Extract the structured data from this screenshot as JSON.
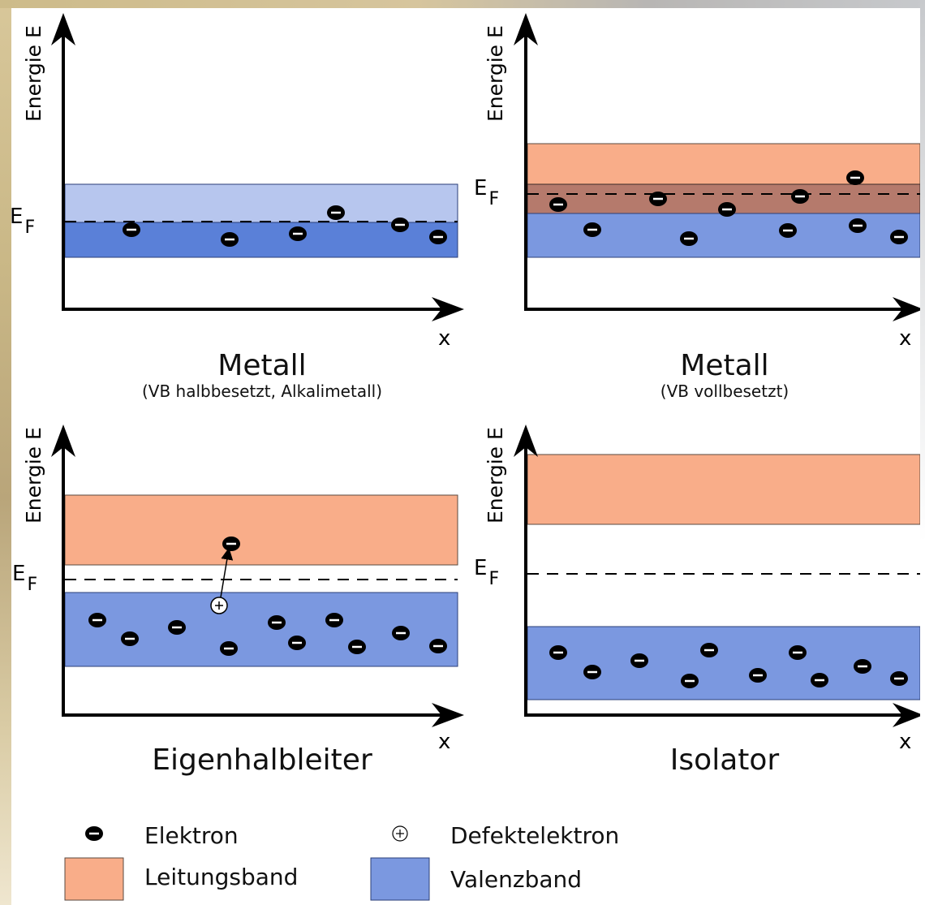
{
  "panels": [
    {
      "axis_y_label": "Energie E",
      "axis_x_label": "x",
      "fermi_label_main": "E",
      "fermi_label_sub": "F",
      "title": "Metall",
      "subtitle": "(VB halbbesetzt, Alkalimetall)"
    },
    {
      "axis_y_label": "Energie E",
      "axis_x_label": "x",
      "fermi_label_main": "E",
      "fermi_label_sub": "F",
      "title": "Metall",
      "subtitle": "(VB vollbesetzt)"
    },
    {
      "axis_y_label": "Energie E",
      "axis_x_label": "x",
      "fermi_label_main": "E",
      "fermi_label_sub": "F",
      "title": "Eigenhalbleiter",
      "subtitle": ""
    },
    {
      "axis_y_label": "Energie E",
      "axis_x_label": "x",
      "fermi_label_main": "E",
      "fermi_label_sub": "F",
      "title": "Isolator",
      "subtitle": ""
    }
  ],
  "legend": {
    "electron": "Elektron",
    "hole": "Defektelektron",
    "conduction_band": "Leitungsband",
    "valence_band": "Valenzband"
  },
  "colors": {
    "conduction_band": "#f9ad89",
    "valence_band": "#7b98e0",
    "valence_band_half_filled": "#5a80d8",
    "valence_band_empty_half": "#b7c6ee",
    "overlap_band": "#b57a6c",
    "axis": "#000000",
    "electron": "#000000"
  }
}
